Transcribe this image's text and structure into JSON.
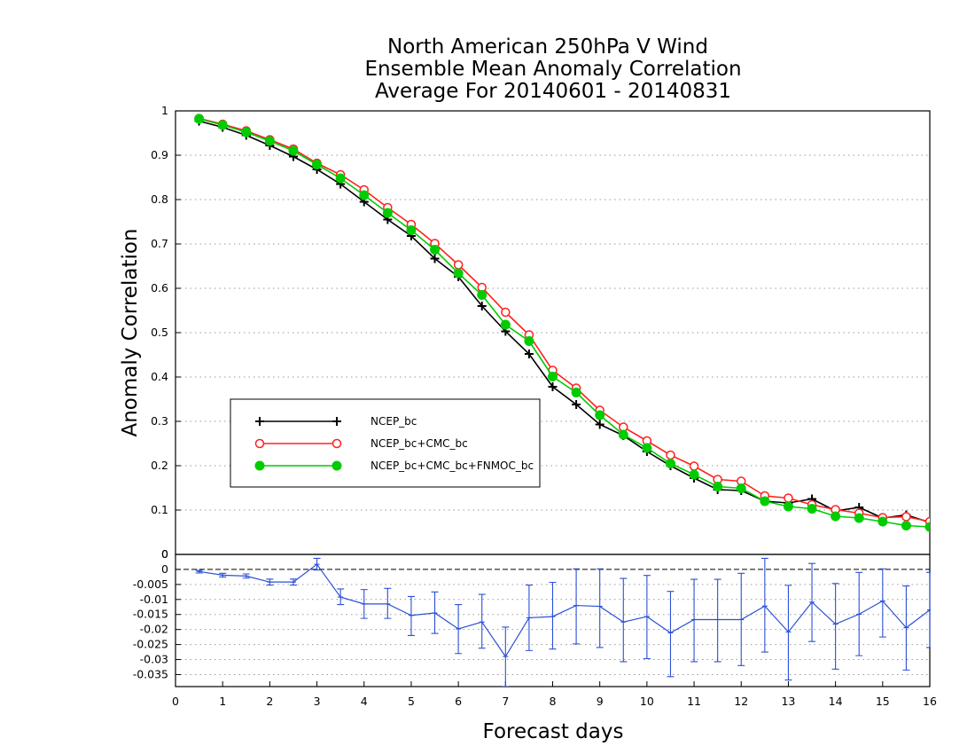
{
  "chart_data": [
    {
      "type": "line",
      "title": [
        "North American 250hPa V Wind",
        "Ensemble Mean Anomaly Correlation",
        "Average For 20140601 - 20140831"
      ],
      "ylabel": "Anomaly Correlation",
      "ylim": [
        0,
        1
      ],
      "yticks": [
        0,
        0.1,
        0.2,
        0.3,
        0.4,
        0.5,
        0.6,
        0.7,
        0.8,
        0.9,
        1
      ],
      "ytick_labels": [
        "0",
        "0.1",
        "0.2",
        "0.3",
        "0.4",
        "0.5",
        "0.6",
        "0.7",
        "0.8",
        "0.9",
        "1"
      ],
      "grid": true,
      "legend_position": "left-middle",
      "x": [
        0.5,
        1,
        1.5,
        2,
        2.5,
        3,
        3.5,
        4,
        4.5,
        5,
        5.5,
        6,
        6.5,
        7,
        7.5,
        8,
        8.5,
        9,
        9.5,
        10,
        10.5,
        11,
        11.5,
        12,
        12.5,
        13,
        13.5,
        14,
        14.5,
        15,
        15.5,
        16
      ],
      "series": [
        {
          "name": "NCEP_bc",
          "color": "#000000",
          "marker": "plus",
          "values": [
            0.977,
            0.963,
            0.945,
            0.922,
            0.897,
            0.868,
            0.835,
            0.795,
            0.755,
            0.718,
            0.667,
            0.626,
            0.56,
            0.503,
            0.452,
            0.378,
            0.338,
            0.293,
            0.268,
            0.232,
            0.2,
            0.172,
            0.146,
            0.144,
            0.12,
            0.116,
            0.125,
            0.098,
            0.106,
            0.082,
            0.089,
            0.072
          ]
        },
        {
          "name": "NCEP_bc+CMC_bc",
          "color": "#ff2020",
          "marker": "open-circle",
          "values": [
            0.983,
            0.97,
            0.955,
            0.935,
            0.914,
            0.882,
            0.856,
            0.822,
            0.782,
            0.744,
            0.701,
            0.653,
            0.602,
            0.546,
            0.495,
            0.415,
            0.375,
            0.325,
            0.287,
            0.256,
            0.224,
            0.199,
            0.169,
            0.165,
            0.132,
            0.127,
            0.112,
            0.101,
            0.093,
            0.083,
            0.085,
            0.074
          ]
        },
        {
          "name": "NCEP_bc+CMC_bc+FNMOC_bc",
          "color": "#00cc00",
          "marker": "filled-circle",
          "values": [
            0.982,
            0.968,
            0.952,
            0.932,
            0.91,
            0.879,
            0.848,
            0.81,
            0.77,
            0.731,
            0.687,
            0.634,
            0.585,
            0.518,
            0.481,
            0.401,
            0.365,
            0.314,
            0.27,
            0.24,
            0.205,
            0.18,
            0.153,
            0.149,
            0.12,
            0.108,
            0.103,
            0.086,
            0.082,
            0.074,
            0.065,
            0.062
          ]
        }
      ]
    },
    {
      "type": "line",
      "xlabel": "Forecast days",
      "xlim": [
        0,
        16
      ],
      "xticks": [
        "0",
        "1",
        "2",
        "3",
        "4",
        "5",
        "6",
        "7",
        "8",
        "9",
        "10",
        "11",
        "12",
        "13",
        "14",
        "15",
        "16"
      ],
      "ylim": [
        -0.039,
        0.005
      ],
      "yticks": [
        0,
        -0.005,
        -0.01,
        -0.015,
        -0.02,
        -0.025,
        -0.03,
        -0.035
      ],
      "ytick_labels": [
        "0",
        "-0.005",
        "-0.01",
        "-0.015",
        "-0.02",
        "-0.025",
        "-0.03",
        "-0.035"
      ],
      "top_label": "0",
      "grid": true,
      "series": [
        {
          "color": "#2b50d6",
          "marker": "errorbar",
          "x": [
            0.5,
            1,
            1.5,
            2,
            2.5,
            3,
            3.5,
            4,
            4.5,
            5,
            5.5,
            6,
            6.5,
            7,
            7.5,
            8,
            8.5,
            9,
            9.5,
            10,
            10.5,
            11,
            11.5,
            12,
            12.5,
            13,
            13.5,
            14,
            14.5,
            15,
            15.5,
            16
          ],
          "values": [
            -0.0007,
            -0.0019,
            -0.0022,
            -0.0042,
            -0.0042,
            0.0017,
            -0.0092,
            -0.0115,
            -0.0115,
            -0.0153,
            -0.0145,
            -0.0198,
            -0.0175,
            -0.029,
            -0.0161,
            -0.0157,
            -0.012,
            -0.0123,
            -0.0175,
            -0.0157,
            -0.0211,
            -0.0167,
            -0.0167,
            -0.0167,
            -0.0122,
            -0.0208,
            -0.0109,
            -0.0182,
            -0.0149,
            -0.0105,
            -0.0194,
            -0.0135
          ],
          "error_low": [
            -0.0012,
            -0.0025,
            -0.0029,
            -0.0052,
            -0.0052,
            -0.0002,
            -0.0117,
            -0.0163,
            -0.0163,
            -0.022,
            -0.0213,
            -0.028,
            -0.0262,
            -0.039,
            -0.027,
            -0.0265,
            -0.0248,
            -0.026,
            -0.0307,
            -0.0297,
            -0.0357,
            -0.0307,
            -0.0307,
            -0.032,
            -0.0275,
            -0.0368,
            -0.024,
            -0.0332,
            -0.0287,
            -0.0225,
            -0.0335,
            -0.026
          ],
          "error_high": [
            -0.0003,
            -0.0013,
            -0.0015,
            -0.0032,
            -0.0032,
            0.0037,
            -0.0065,
            -0.0067,
            -0.0063,
            -0.009,
            -0.0075,
            -0.0117,
            -0.0083,
            -0.0192,
            -0.0052,
            -0.0043,
            0.0002,
            0.0002,
            -0.003,
            -0.002,
            -0.0073,
            -0.0033,
            -0.0033,
            -0.0013,
            0.0037,
            -0.0053,
            0.002,
            -0.0047,
            -0.001,
            0.0002,
            -0.0055,
            -0.001
          ]
        }
      ]
    }
  ]
}
